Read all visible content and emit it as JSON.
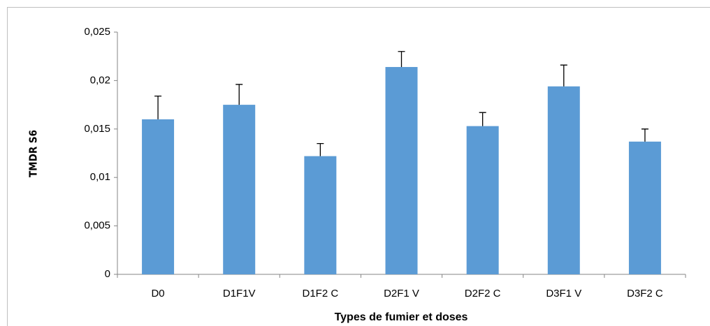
{
  "chart_data": {
    "type": "bar",
    "x_label": "Types de fumier et doses",
    "y_label": "TMDR S6",
    "categories": [
      "D0",
      "D1F1V",
      "D1F2 C",
      "D2F1 V",
      "D2F2 C",
      "D3F1 V",
      "D3F2 C"
    ],
    "values": [
      0.016,
      0.0175,
      0.0122,
      0.0214,
      0.0153,
      0.0194,
      0.0137
    ],
    "errors": [
      0.0024,
      0.0021,
      0.0013,
      0.0016,
      0.0014,
      0.0022,
      0.0013
    ],
    "color": "#5b9bd5",
    "ylim": [
      0,
      0.025
    ],
    "yticks": [
      0,
      {
        "value": 0.005,
        "label": "0,005"
      },
      {
        "value": 0.01,
        "label": "0,01"
      },
      {
        "value": 0.015,
        "label": "0,015"
      },
      {
        "value": 0.02,
        "label": "0,02"
      },
      {
        "value": 0.025,
        "label": "0,025"
      }
    ],
    "grid": false
  }
}
